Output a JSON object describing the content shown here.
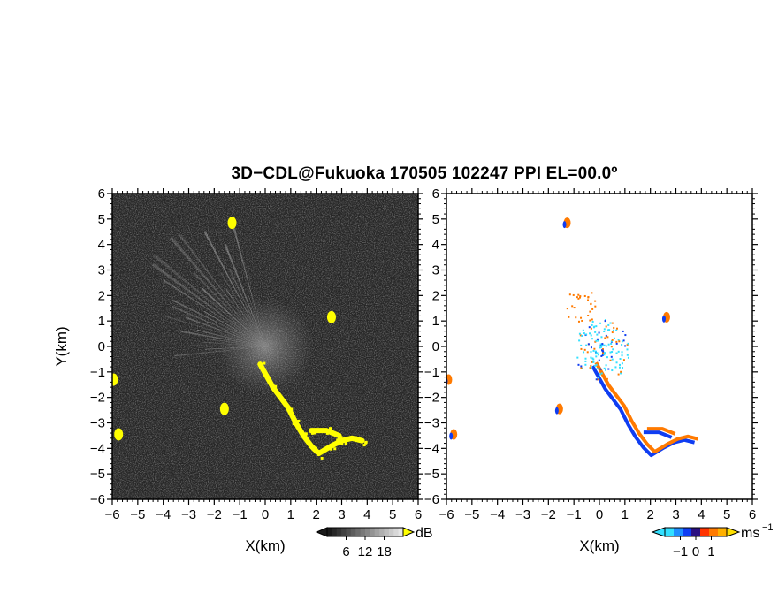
{
  "chart_data": {
    "title": "3D−CDL@Fukuoka 170505 102247 PPI EL=00.0º",
    "panels": [
      {
        "type": "heatmap",
        "name": "snr",
        "xlabel": "X(km)",
        "ylabel": "Y(km)",
        "xlim": [
          -6,
          6
        ],
        "ylim": [
          -6,
          6
        ],
        "xticks": [
          "−6",
          "−5",
          "−4",
          "−3",
          "−2",
          "−1",
          "0",
          "1",
          "2",
          "3",
          "4",
          "5",
          "6"
        ],
        "yticks": [
          "6",
          "5",
          "4",
          "3",
          "2",
          "1",
          "0",
          "−1",
          "−2",
          "−3",
          "−4",
          "−5",
          "−6"
        ],
        "background": "#262626",
        "mask_color": "#ffff00",
        "colorbar": {
          "unit": "dB",
          "ticks": [
            "6",
            "12",
            "18"
          ],
          "tick_values": [
            6,
            12,
            18
          ],
          "range": [
            0,
            24
          ]
        },
        "echo_paths": [
          [
            [
              -0.2,
              -0.7
            ],
            [
              0.3,
              -1.6
            ],
            [
              0.9,
              -2.4
            ],
            [
              1.2,
              -3.0
            ],
            [
              1.5,
              -3.5
            ],
            [
              1.8,
              -3.9
            ],
            [
              2.1,
              -4.2
            ],
            [
              2.6,
              -3.9
            ],
            [
              3.0,
              -3.7
            ],
            [
              3.4,
              -3.6
            ],
            [
              3.8,
              -3.7
            ]
          ],
          [
            [
              1.8,
              -3.3
            ],
            [
              2.4,
              -3.3
            ],
            [
              2.9,
              -3.5
            ]
          ]
        ],
        "echo_blobs": [
          [
            -5.95,
            -1.3
          ],
          [
            -5.75,
            -3.45
          ],
          [
            -1.3,
            4.85
          ],
          [
            2.6,
            1.15
          ],
          [
            -1.6,
            -2.45
          ]
        ]
      },
      {
        "type": "heatmap",
        "name": "doppler",
        "xlabel": "X(km)",
        "xlim": [
          -6,
          6
        ],
        "ylim": [
          -6,
          6
        ],
        "xticks": [
          "−6",
          "−5",
          "−4",
          "−3",
          "−2",
          "−1",
          "0",
          "1",
          "2",
          "3",
          "4",
          "5",
          "6"
        ],
        "yticks": [
          "6",
          "5",
          "4",
          "3",
          "2",
          "1",
          "0",
          "−1",
          "−2",
          "−3",
          "−4",
          "−5",
          "−6"
        ],
        "background": "#ffffff",
        "colorbar": {
          "unit": "ms",
          "unit_sup": "−1",
          "ticks": [
            "−1",
            "0",
            "1"
          ],
          "tick_values": [
            -1,
            0,
            1
          ],
          "range": [
            -2,
            2
          ]
        },
        "scale_colors": [
          "#33e0ff",
          "#0f3df2",
          "#ff7a00"
        ],
        "echo_paths": [
          [
            [
              -0.2,
              -0.7
            ],
            [
              0.3,
              -1.6
            ],
            [
              0.9,
              -2.4
            ],
            [
              1.2,
              -3.0
            ],
            [
              1.5,
              -3.5
            ],
            [
              1.8,
              -3.9
            ],
            [
              2.1,
              -4.2
            ],
            [
              2.6,
              -3.9
            ],
            [
              3.0,
              -3.7
            ],
            [
              3.4,
              -3.6
            ],
            [
              3.8,
              -3.7
            ]
          ],
          [
            [
              1.8,
              -3.3
            ],
            [
              2.4,
              -3.3
            ],
            [
              2.9,
              -3.5
            ]
          ]
        ],
        "cluster_center": [
          0.1,
          -0.1
        ]
      }
    ]
  }
}
